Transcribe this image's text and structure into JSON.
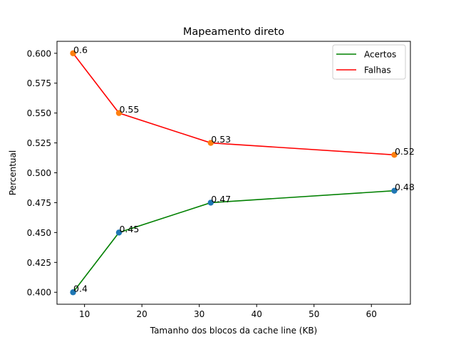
{
  "chart_data": {
    "type": "line",
    "title": "Mapeamento direto",
    "xlabel": "Tamanho dos blocos da cache line (KB)",
    "ylabel": "Percentual",
    "x": [
      8,
      16,
      32,
      64
    ],
    "xlim": [
      5.2,
      66.8
    ],
    "ylim": [
      0.39,
      0.61
    ],
    "xticks": [
      10,
      20,
      30,
      40,
      50,
      60
    ],
    "xtick_labels": [
      "10",
      "20",
      "30",
      "40",
      "50",
      "60"
    ],
    "yticks": [
      0.4,
      0.425,
      0.45,
      0.475,
      0.5,
      0.525,
      0.55,
      0.575,
      0.6
    ],
    "ytick_labels": [
      "0.400",
      "0.425",
      "0.450",
      "0.475",
      "0.500",
      "0.525",
      "0.550",
      "0.575",
      "0.600"
    ],
    "grid": false,
    "legend_position": "top-right",
    "series": [
      {
        "name": "Acertos",
        "values": [
          0.4,
          0.45,
          0.475,
          0.485
        ],
        "labels": [
          "0.4",
          "0.45",
          "0.47",
          "0.48"
        ],
        "line_color": "#008000",
        "marker_color": "#1f77b4"
      },
      {
        "name": "Falhas",
        "values": [
          0.6,
          0.55,
          0.525,
          0.515
        ],
        "labels": [
          "0.6",
          "0.55",
          "0.53",
          "0.52"
        ],
        "line_color": "#ff0000",
        "marker_color": "#ff7f0e"
      }
    ]
  }
}
